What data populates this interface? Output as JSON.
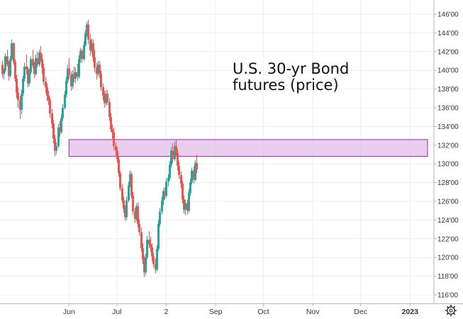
{
  "chart_data": {
    "type": "candlestick",
    "title": "",
    "annotation_lines": [
      "U.S. 30-yr Bond",
      "futures (price)"
    ],
    "xlabel": "",
    "ylabel": "",
    "ylim": [
      115,
      147
    ],
    "y_ticks": [
      "116'00",
      "118'00",
      "120'00",
      "122'00",
      "124'00",
      "126'00",
      "128'00",
      "130'00",
      "132'00",
      "134'00",
      "136'00",
      "138'00",
      "140'00",
      "142'00",
      "144'00",
      "146'00"
    ],
    "x_ticks": [
      {
        "label": "Jun",
        "day": 47
      },
      {
        "label": "Jul",
        "day": 77
      },
      {
        "label": "2",
        "day": 108
      },
      {
        "label": "Sep",
        "day": 139
      },
      {
        "label": "Oct",
        "day": 169
      },
      {
        "label": "Nov",
        "day": 200
      },
      {
        "label": "Dec",
        "day": 230
      },
      {
        "label": "2023",
        "day": 261
      }
    ],
    "grid": true,
    "colors": {
      "up": "#26a69a",
      "down": "#ef5350",
      "band_fill": "#e1bee7",
      "band_stroke": "#9c27b0",
      "grid": "#eceff1",
      "text": "#333333"
    },
    "band": {
      "y_low": 130.8,
      "y_high": 132.6,
      "x_start_day": 47,
      "x_end_day": 272
    },
    "x_range_days": [
      5,
      272
    ],
    "series": [
      {
        "candles": [
          [
            5,
            140.6,
            141.0,
            139.2,
            139.6
          ],
          [
            6,
            139.6,
            140.2,
            139.0,
            140.0
          ],
          [
            7,
            140.0,
            141.8,
            139.8,
            141.5
          ],
          [
            8,
            141.5,
            142.2,
            140.4,
            140.6
          ],
          [
            9,
            140.6,
            141.0,
            138.9,
            139.4
          ],
          [
            10,
            139.4,
            141.5,
            139.2,
            141.2
          ],
          [
            11,
            141.2,
            143.3,
            141.0,
            142.9
          ],
          [
            12,
            142.9,
            143.0,
            140.6,
            140.9
          ],
          [
            13,
            140.9,
            141.2,
            138.8,
            139.1
          ],
          [
            14,
            139.1,
            139.5,
            137.0,
            137.6
          ],
          [
            15,
            137.6,
            138.2,
            136.0,
            136.8
          ],
          [
            16,
            136.8,
            137.2,
            134.8,
            135.8
          ],
          [
            17,
            135.8,
            137.9,
            135.3,
            137.5
          ],
          [
            18,
            137.5,
            139.4,
            137.2,
            139.1
          ],
          [
            19,
            139.1,
            140.8,
            138.8,
            140.4
          ],
          [
            20,
            140.4,
            141.7,
            139.6,
            140.1
          ],
          [
            21,
            140.1,
            140.4,
            138.2,
            138.6
          ],
          [
            22,
            138.6,
            140.2,
            138.3,
            139.8
          ],
          [
            23,
            139.8,
            141.5,
            139.6,
            141.2
          ],
          [
            24,
            141.2,
            142.2,
            140.2,
            140.5
          ],
          [
            25,
            140.5,
            140.9,
            139.2,
            139.6
          ],
          [
            26,
            139.6,
            141.7,
            139.4,
            141.3
          ],
          [
            27,
            141.3,
            142.0,
            140.3,
            140.6
          ],
          [
            28,
            140.6,
            142.2,
            140.4,
            141.9
          ],
          [
            29,
            141.9,
            142.6,
            140.9,
            141.2
          ],
          [
            30,
            141.2,
            141.7,
            139.6,
            140.3
          ],
          [
            31,
            140.3,
            140.7,
            138.4,
            138.8
          ],
          [
            32,
            138.8,
            139.3,
            137.6,
            138.2
          ],
          [
            33,
            138.2,
            138.6,
            136.7,
            137.3
          ],
          [
            34,
            137.3,
            137.8,
            136.3,
            136.8
          ],
          [
            35,
            136.8,
            137.1,
            134.9,
            135.4
          ],
          [
            36,
            135.4,
            135.9,
            133.8,
            134.3
          ],
          [
            37,
            134.3,
            134.7,
            132.2,
            132.7
          ],
          [
            38,
            132.7,
            133.1,
            130.8,
            131.4
          ],
          [
            39,
            131.4,
            132.3,
            131.0,
            131.9
          ],
          [
            40,
            131.9,
            134.3,
            131.7,
            133.9
          ],
          [
            41,
            133.9,
            134.6,
            132.9,
            133.4
          ],
          [
            42,
            133.4,
            135.3,
            133.2,
            134.9
          ],
          [
            43,
            134.9,
            136.4,
            134.6,
            136.0
          ],
          [
            44,
            136.0,
            137.8,
            135.8,
            137.4
          ],
          [
            45,
            137.4,
            139.3,
            137.1,
            138.9
          ],
          [
            46,
            138.9,
            140.6,
            138.6,
            140.2
          ],
          [
            47,
            140.2,
            141.3,
            139.1,
            139.5
          ],
          [
            48,
            139.5,
            139.9,
            137.8,
            138.3
          ],
          [
            49,
            138.3,
            140.0,
            138.0,
            139.6
          ],
          [
            50,
            139.6,
            140.4,
            138.7,
            139.1
          ],
          [
            51,
            139.1,
            140.3,
            138.6,
            139.8
          ],
          [
            52,
            139.8,
            140.7,
            138.9,
            139.3
          ],
          [
            53,
            139.3,
            141.6,
            139.1,
            141.2
          ],
          [
            54,
            141.2,
            142.4,
            140.8,
            142.1
          ],
          [
            55,
            142.1,
            142.3,
            140.8,
            141.2
          ],
          [
            56,
            141.2,
            143.1,
            141.0,
            142.7
          ],
          [
            57,
            142.7,
            144.3,
            142.5,
            144.0
          ],
          [
            58,
            144.0,
            145.2,
            143.6,
            144.9
          ],
          [
            59,
            144.9,
            145.4,
            142.8,
            143.3
          ],
          [
            60,
            143.3,
            143.9,
            141.6,
            142.1
          ],
          [
            61,
            142.1,
            143.4,
            141.8,
            142.9
          ],
          [
            62,
            142.9,
            143.3,
            140.9,
            141.4
          ],
          [
            63,
            141.4,
            142.2,
            139.8,
            140.3
          ],
          [
            64,
            140.3,
            140.8,
            139.0,
            139.6
          ],
          [
            65,
            139.6,
            141.0,
            139.3,
            140.6
          ],
          [
            66,
            140.6,
            141.0,
            139.2,
            139.6
          ],
          [
            67,
            139.6,
            140.0,
            137.8,
            138.2
          ],
          [
            68,
            138.2,
            138.6,
            136.8,
            137.3
          ],
          [
            69,
            137.3,
            137.8,
            136.0,
            136.5
          ],
          [
            70,
            136.5,
            137.9,
            136.2,
            137.5
          ],
          [
            71,
            137.5,
            137.9,
            136.3,
            136.6
          ],
          [
            72,
            136.6,
            137.0,
            134.6,
            135.0
          ],
          [
            73,
            135.0,
            135.4,
            133.4,
            133.7
          ],
          [
            74,
            133.7,
            134.2,
            132.7,
            133.4
          ],
          [
            75,
            133.4,
            133.9,
            131.5,
            131.9
          ],
          [
            76,
            131.9,
            132.3,
            130.9,
            131.4
          ],
          [
            77,
            131.4,
            131.8,
            130.1,
            130.5
          ],
          [
            78,
            130.5,
            130.8,
            128.6,
            129.0
          ],
          [
            79,
            129.0,
            129.3,
            127.1,
            127.4
          ],
          [
            80,
            127.4,
            127.8,
            125.8,
            126.1
          ],
          [
            81,
            126.1,
            126.5,
            124.8,
            125.2
          ],
          [
            82,
            125.2,
            125.6,
            123.9,
            124.3
          ],
          [
            83,
            124.3,
            126.5,
            124.0,
            126.1
          ],
          [
            84,
            126.1,
            128.1,
            125.9,
            127.7
          ],
          [
            85,
            127.7,
            129.3,
            127.5,
            128.9
          ],
          [
            86,
            128.9,
            129.2,
            126.3,
            126.6
          ],
          [
            87,
            126.6,
            127.0,
            124.5,
            124.9
          ],
          [
            88,
            124.9,
            125.3,
            123.7,
            124.1
          ],
          [
            89,
            124.1,
            125.8,
            123.9,
            125.5
          ],
          [
            90,
            125.5,
            125.9,
            123.2,
            123.6
          ],
          [
            91,
            123.6,
            124.1,
            122.3,
            122.7
          ],
          [
            92,
            122.7,
            123.2,
            120.6,
            121.0
          ],
          [
            93,
            121.0,
            121.5,
            119.3,
            119.8
          ],
          [
            94,
            119.8,
            120.2,
            117.9,
            118.4
          ],
          [
            95,
            118.4,
            120.4,
            118.1,
            120.0
          ],
          [
            96,
            120.0,
            122.3,
            119.8,
            121.9
          ],
          [
            97,
            121.9,
            122.8,
            121.0,
            121.4
          ],
          [
            98,
            121.4,
            122.2,
            120.6,
            121.1
          ],
          [
            99,
            121.1,
            121.5,
            119.6,
            120.1
          ],
          [
            100,
            120.1,
            120.5,
            118.9,
            119.3
          ],
          [
            101,
            119.3,
            119.9,
            118.3,
            118.7
          ],
          [
            102,
            118.7,
            121.3,
            118.5,
            120.9
          ],
          [
            103,
            120.9,
            124.0,
            120.7,
            123.6
          ],
          [
            104,
            123.6,
            125.3,
            123.3,
            124.9
          ],
          [
            105,
            124.9,
            126.5,
            124.6,
            126.1
          ],
          [
            106,
            126.1,
            127.4,
            125.6,
            127.1
          ],
          [
            107,
            127.1,
            127.5,
            126.2,
            126.6
          ],
          [
            108,
            126.6,
            128.5,
            126.4,
            128.1
          ],
          [
            109,
            128.1,
            128.9,
            127.6,
            128.5
          ],
          [
            110,
            128.5,
            130.3,
            128.3,
            129.9
          ],
          [
            111,
            129.9,
            131.8,
            129.6,
            131.4
          ],
          [
            112,
            131.4,
            132.2,
            130.1,
            130.5
          ],
          [
            113,
            130.5,
            132.4,
            130.3,
            131.9
          ],
          [
            114,
            131.9,
            132.6,
            130.9,
            131.2
          ],
          [
            115,
            131.2,
            131.6,
            129.3,
            129.8
          ],
          [
            116,
            129.8,
            130.2,
            128.4,
            128.8
          ],
          [
            117,
            128.8,
            129.2,
            127.4,
            127.9
          ],
          [
            118,
            127.9,
            128.2,
            125.8,
            126.2
          ],
          [
            119,
            126.2,
            126.6,
            124.7,
            125.1
          ],
          [
            120,
            125.1,
            126.2,
            124.5,
            125.8
          ],
          [
            121,
            125.8,
            126.2,
            124.6,
            125.0
          ],
          [
            122,
            125.0,
            127.3,
            124.8,
            126.9
          ],
          [
            123,
            126.9,
            128.4,
            126.6,
            128.0
          ],
          [
            124,
            128.0,
            129.6,
            127.8,
            129.3
          ],
          [
            125,
            129.3,
            129.7,
            127.9,
            128.3
          ],
          [
            126,
            128.3,
            130.4,
            128.1,
            130.1
          ],
          [
            127,
            130.1,
            131.0,
            129.0,
            129.4
          ]
        ]
      }
    ]
  }
}
